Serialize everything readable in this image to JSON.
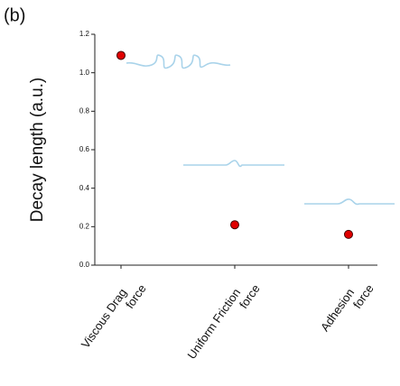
{
  "chart_data": {
    "type": "scatter",
    "panel_label": "(b)",
    "y_label": "Decay length (a.u.)",
    "categories": [
      [
        "Viscous Drag",
        "force"
      ],
      [
        "Uniform Friction",
        "force"
      ],
      [
        "Adhesion",
        "force"
      ]
    ],
    "values": [
      1.09,
      0.21,
      0.16
    ],
    "color": "#e00000",
    "ylim": [
      0,
      1.2
    ],
    "yticks": [
      {
        "value": 0,
        "label": "0.0"
      },
      0.2,
      0.4,
      0.6,
      0.8,
      {
        "value": 1,
        "label": "1.0"
      },
      1.2
    ]
  }
}
